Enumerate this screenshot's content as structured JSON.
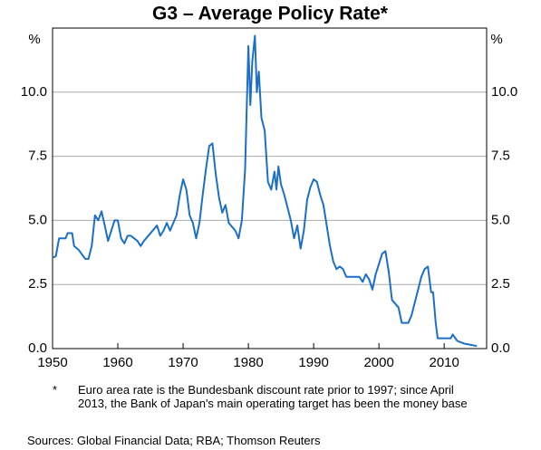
{
  "chart_data": {
    "type": "line",
    "title": "G3 – Average Policy Rate*",
    "y_unit_left": "%",
    "y_unit_right": "%",
    "xlim": [
      1950,
      2016.5
    ],
    "xticks": [
      1950,
      1960,
      1970,
      1980,
      1990,
      2000,
      2010
    ],
    "ylim": [
      0,
      12.5
    ],
    "yticks": [
      {
        "value": 0,
        "label": "0.0"
      },
      2.5,
      {
        "value": 5,
        "label": "5.0"
      },
      7.5,
      {
        "value": 10,
        "label": "10.0"
      }
    ],
    "grid": true,
    "series": [
      {
        "name": "G3 average policy rate",
        "color": "#1c6fc7",
        "x": [
          1950,
          1950.5,
          1951,
          1952,
          1952.3,
          1953,
          1953.3,
          1954,
          1955,
          1955.5,
          1956,
          1956.5,
          1957,
          1957.5,
          1958,
          1958.5,
          1959,
          1959.5,
          1960,
          1960.5,
          1961,
          1961.5,
          1962,
          1963,
          1963.5,
          1964,
          1965,
          1966,
          1966.5,
          1967,
          1967.5,
          1968,
          1969,
          1969.5,
          1970,
          1970.5,
          1971,
          1971.5,
          1972,
          1972.5,
          1973,
          1973.5,
          1974,
          1974.5,
          1975,
          1975.5,
          1976,
          1976.5,
          1977,
          1978,
          1978.5,
          1979,
          1979.5,
          1980,
          1980.3,
          1980.6,
          1981,
          1981.3,
          1981.6,
          1982,
          1982.5,
          1983,
          1983.5,
          1984,
          1984.3,
          1984.6,
          1985,
          1985.5,
          1986,
          1986.5,
          1987,
          1987.5,
          1988,
          1988.5,
          1989,
          1989.5,
          1990,
          1990.5,
          1991,
          1991.5,
          1992,
          1992.5,
          1993,
          1993.5,
          1994,
          1994.5,
          1995,
          1996,
          1997,
          1997.5,
          1998,
          1998.5,
          1999,
          1999.5,
          2000,
          2000.5,
          2001,
          2001.5,
          2002,
          2003,
          2003.5,
          2004,
          2004.5,
          2005,
          2005.5,
          2006,
          2006.5,
          2007,
          2007.5,
          2008,
          2008.3,
          2008.7,
          2009,
          2010,
          2011,
          2011.3,
          2012,
          2013,
          2014,
          2015
        ],
        "values": [
          3.55,
          3.6,
          4.3,
          4.3,
          4.5,
          4.5,
          4.0,
          3.85,
          3.5,
          3.5,
          4.0,
          5.2,
          5.0,
          5.35,
          4.8,
          4.2,
          4.6,
          5.0,
          5.0,
          4.3,
          4.1,
          4.4,
          4.4,
          4.2,
          4.0,
          4.2,
          4.5,
          4.8,
          4.4,
          4.6,
          4.9,
          4.6,
          5.2,
          6.0,
          6.6,
          6.2,
          5.2,
          4.9,
          4.3,
          4.9,
          6.0,
          7.0,
          7.9,
          8.0,
          6.8,
          5.9,
          5.3,
          5.6,
          4.9,
          4.6,
          4.3,
          5.0,
          7.0,
          11.8,
          9.5,
          11.2,
          12.2,
          10.0,
          10.8,
          9.0,
          8.5,
          6.5,
          6.2,
          6.9,
          6.2,
          7.1,
          6.4,
          6.0,
          5.5,
          5.0,
          4.3,
          4.8,
          3.9,
          4.6,
          5.8,
          6.3,
          6.6,
          6.5,
          6.0,
          5.6,
          4.8,
          4.0,
          3.4,
          3.1,
          3.2,
          3.1,
          2.8,
          2.8,
          2.8,
          2.6,
          2.9,
          2.7,
          2.3,
          2.9,
          3.3,
          3.7,
          3.8,
          3.0,
          1.9,
          1.6,
          1.0,
          1.0,
          1.0,
          1.3,
          1.8,
          2.3,
          2.8,
          3.1,
          3.2,
          2.2,
          2.2,
          1.0,
          0.4,
          0.4,
          0.4,
          0.55,
          0.3,
          0.2,
          0.15,
          0.1
        ]
      }
    ],
    "footnote_marker": "*",
    "footnote": "Euro area rate is the Bundesbank discount rate prior to 1997; since April 2013, the Bank of Japan's main operating target has been the money base",
    "sources": "Sources:  Global Financial Data; RBA; Thomson Reuters"
  }
}
